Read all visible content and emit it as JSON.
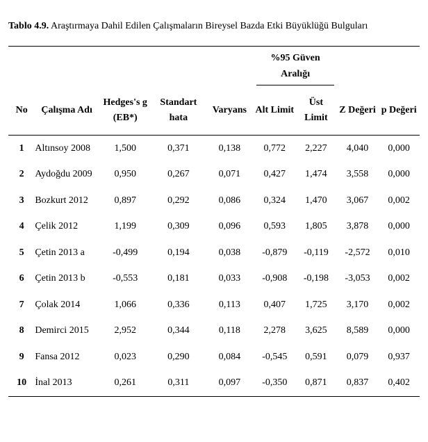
{
  "caption": {
    "label": "Tablo 4.9.",
    "text": " Araştırmaya Dahil Edilen Çalışmaların Bireysel Bazda Etki Büyüklüğü Bulguları"
  },
  "headers": {
    "ci": "%95 Güven Aralığı",
    "no": "No",
    "study": "Çalışma Adı",
    "hedges": "Hedges's g (EB*)",
    "se": "Standart hata",
    "var": "Varyans",
    "lo": "Alt Limit",
    "hi": "Üst Limit",
    "z": "Z Değeri",
    "p": "p Değeri"
  },
  "rows": [
    {
      "idx": "1",
      "study": "Altınsoy 2008",
      "g": "1,500",
      "se": "0,371",
      "var": "0,138",
      "lo": "0,772",
      "hi": "2,227",
      "z": "4,040",
      "p": "0,000"
    },
    {
      "idx": "2",
      "study": "Aydoğdu 2009",
      "g": "0,950",
      "se": "0,267",
      "var": "0,071",
      "lo": "0,427",
      "hi": "1,474",
      "z": "3,558",
      "p": "0,000"
    },
    {
      "idx": "3",
      "study": "Bozkurt 2012",
      "g": "0,897",
      "se": "0,292",
      "var": "0,086",
      "lo": "0,324",
      "hi": "1,470",
      "z": "3,067",
      "p": "0,002"
    },
    {
      "idx": "4",
      "study": "Çelik 2012",
      "g": "1,199",
      "se": "0,309",
      "var": "0,096",
      "lo": "0,593",
      "hi": "1,805",
      "z": "3,878",
      "p": "0,000"
    },
    {
      "idx": "5",
      "study": "Çetin 2013 a",
      "g": "-0,499",
      "se": "0,194",
      "var": "0,038",
      "lo": "-0,879",
      "hi": "-0,119",
      "z": "-2,572",
      "p": "0,010"
    },
    {
      "idx": "6",
      "study": "Çetin 2013 b",
      "g": "-0,553",
      "se": "0,181",
      "var": "0,033",
      "lo": "-0,908",
      "hi": "-0,198",
      "z": "-3,053",
      "p": "0,002"
    },
    {
      "idx": "7",
      "study": "Çolak 2014",
      "g": "1,066",
      "se": "0,336",
      "var": "0,113",
      "lo": "0,407",
      "hi": "1,725",
      "z": "3,170",
      "p": "0,002"
    },
    {
      "idx": "8",
      "study": "Demirci 2015",
      "g": "2,952",
      "se": "0,344",
      "var": "0,118",
      "lo": "2,278",
      "hi": "3,625",
      "z": "8,589",
      "p": "0,000"
    },
    {
      "idx": "9",
      "study": "Fansa 2012",
      "g": "0,023",
      "se": "0,290",
      "var": "0,084",
      "lo": "-0,545",
      "hi": "0,591",
      "z": "0,079",
      "p": "0,937"
    },
    {
      "idx": "10",
      "study": "İnal 2013",
      "g": "0,261",
      "se": "0,311",
      "var": "0,097",
      "lo": "-0,350",
      "hi": "0,871",
      "z": "0,837",
      "p": "0,402"
    }
  ]
}
